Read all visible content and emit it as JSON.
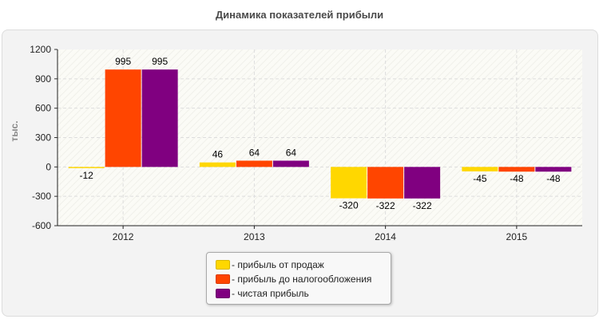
{
  "chart_data": {
    "type": "bar",
    "title": "Динамика показателей прибыли",
    "ylabel": "тыс.",
    "xlabel": "",
    "categories": [
      "2012",
      "2013",
      "2014",
      "2015"
    ],
    "ylim": [
      -600,
      1200
    ],
    "yticks": [
      1200,
      900,
      600,
      300,
      0,
      -300,
      -600
    ],
    "grid": true,
    "legend_position": "bottom",
    "series": [
      {
        "name": "- прибыль от продаж",
        "color": "#ffd700",
        "values": [
          -12,
          46,
          -320,
          -45
        ]
      },
      {
        "name": "- прибыль до налогообложения",
        "color": "#ff4500",
        "values": [
          995,
          64,
          -322,
          -48
        ]
      },
      {
        "name": "- чистая прибыль",
        "color": "#800080",
        "values": [
          995,
          64,
          -322,
          -48
        ]
      }
    ]
  }
}
